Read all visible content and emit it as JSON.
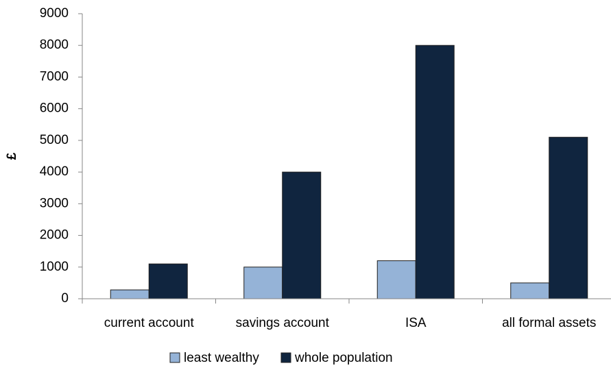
{
  "chart_data": {
    "type": "bar",
    "y_label": "£",
    "categories": [
      "current account",
      "savings account",
      "ISA",
      "all formal assets"
    ],
    "series": [
      {
        "name": "least wealthy",
        "color": "#95b3d7",
        "values": [
          280,
          1000,
          1200,
          500
        ]
      },
      {
        "name": "whole population",
        "color": "#10253f",
        "values": [
          1100,
          4000,
          8000,
          5100
        ]
      }
    ],
    "ylim": [
      0,
      9000
    ],
    "yticks": [
      0,
      1000,
      2000,
      3000,
      4000,
      5000,
      6000,
      7000,
      8000,
      9000
    ],
    "grid": false,
    "legend": "bottom"
  }
}
